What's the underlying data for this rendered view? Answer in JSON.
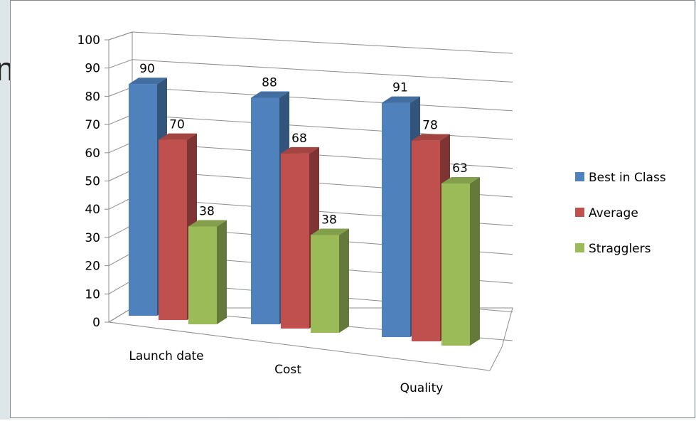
{
  "slide": {
    "background_glyph": "n"
  },
  "chart_data": {
    "type": "bar",
    "style": "3d-clustered-column",
    "categories": [
      "Launch date",
      "Cost",
      "Quality"
    ],
    "series": [
      {
        "name": "Best in Class",
        "values": [
          90,
          88,
          91
        ],
        "color": "#4f81bd"
      },
      {
        "name": "Average",
        "values": [
          70,
          68,
          78
        ],
        "color": "#c0504d"
      },
      {
        "name": "Stragglers",
        "values": [
          38,
          38,
          63
        ],
        "color": "#9bbb59"
      }
    ],
    "data_labels": [
      [
        "90",
        "88",
        "91"
      ],
      [
        "70",
        "68",
        "78"
      ],
      [
        "38",
        "38",
        "63"
      ]
    ],
    "ylim": [
      0,
      100
    ],
    "yticks": [
      "0",
      "10",
      "20",
      "30",
      "40",
      "50",
      "60",
      "70",
      "80",
      "90",
      "100"
    ],
    "grid": true,
    "legend_position": "right"
  }
}
